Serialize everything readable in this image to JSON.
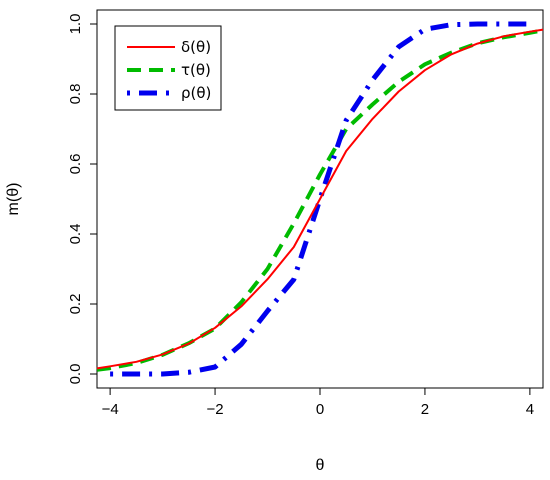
{
  "chart_data": {
    "type": "line",
    "title": "",
    "xlabel": "θ",
    "ylabel": "m(θ)",
    "xlim": [
      -4.25,
      4.25
    ],
    "ylim": [
      -0.04,
      1.04
    ],
    "xticks": [
      -4,
      -2,
      0,
      2,
      4
    ],
    "xtick_labels": [
      "−4",
      "−2",
      "0",
      "2",
      "4"
    ],
    "yticks": [
      0.0,
      0.2,
      0.4,
      0.6,
      0.8,
      1.0
    ],
    "ytick_labels": [
      "0.0",
      "0.2",
      "0.4",
      "0.6",
      "0.8",
      "1.0"
    ],
    "grid": false,
    "legend": "top-left",
    "series": [
      {
        "name": "δ(θ)",
        "color": "#ff0000",
        "style": "solid",
        "x": [
          -4.25,
          -4,
          -3.5,
          -3,
          -2.5,
          -2,
          -1.5,
          -1,
          -0.5,
          0,
          0.5,
          1,
          1.5,
          2,
          2.5,
          3,
          3.5,
          4,
          4.25
        ],
        "y": [
          0.016,
          0.022,
          0.035,
          0.056,
          0.087,
          0.132,
          0.193,
          0.271,
          0.363,
          0.5,
          0.637,
          0.729,
          0.807,
          0.868,
          0.913,
          0.944,
          0.965,
          0.978,
          0.984
        ]
      },
      {
        "name": "τ(θ)",
        "color": "#00bb00",
        "style": "dashed",
        "x": [
          -4.25,
          -4,
          -3.5,
          -3,
          -2.5,
          -2,
          -1.5,
          -1,
          -0.5,
          0,
          0.5,
          1,
          1.5,
          2,
          2.5,
          3,
          3.5,
          4,
          4.25
        ],
        "y": [
          0.012,
          0.017,
          0.031,
          0.055,
          0.088,
          0.13,
          0.205,
          0.3,
          0.43,
          0.57,
          0.7,
          0.77,
          0.835,
          0.885,
          0.918,
          0.945,
          0.962,
          0.975,
          0.982
        ]
      },
      {
        "name": "ρ(θ)",
        "color": "#0000ee",
        "style": "dotdash",
        "x": [
          -4,
          -3,
          -2.5,
          -2,
          -1.5,
          -1,
          -0.5,
          0,
          0.5,
          1,
          1.5,
          2,
          2.5,
          3,
          4
        ],
        "y": [
          0.0,
          0.0,
          0.005,
          0.02,
          0.085,
          0.18,
          0.27,
          0.5,
          0.725,
          0.84,
          0.935,
          0.985,
          0.998,
          1.0,
          1.0
        ]
      }
    ]
  }
}
